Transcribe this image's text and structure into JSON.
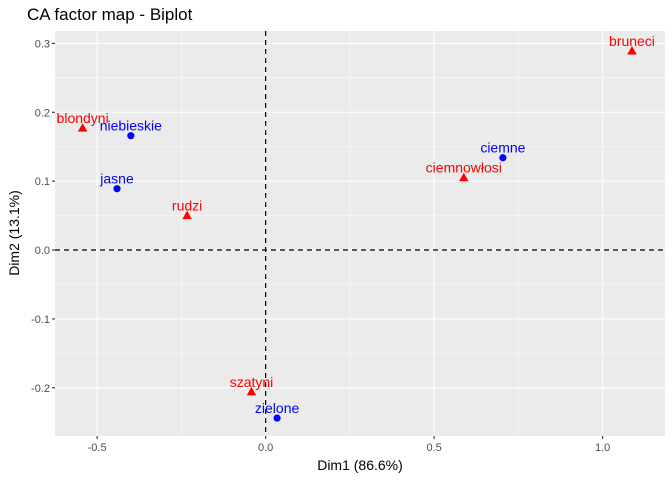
{
  "chart_data": {
    "type": "scatter",
    "title": "CA factor map - Biplot",
    "xlabel": "Dim1 (86.6%)",
    "ylabel": "Dim2 (13.1%)",
    "xlim": [
      -0.625,
      1.185
    ],
    "ylim": [
      -0.27,
      0.318
    ],
    "x_ticks": [
      -0.5,
      0.0,
      0.5,
      1.0
    ],
    "x_tick_labels": [
      "-0.5",
      "0.0",
      "0.5",
      "1.0"
    ],
    "y_ticks": [
      -0.2,
      -0.1,
      0.0,
      0.1,
      0.2,
      0.3
    ],
    "y_tick_labels": [
      "-0.2",
      "-0.1",
      "0.0",
      "0.1",
      "0.2",
      "0.3"
    ],
    "grid": true,
    "reference_lines": {
      "x": 0,
      "y": 0,
      "style": "dashed"
    },
    "series": [
      {
        "marker": "triangle",
        "color": "#ff0000",
        "points": [
          {
            "label": "blondyni",
            "x": -0.543,
            "y": 0.177
          },
          {
            "label": "rudzi",
            "x": -0.233,
            "y": 0.05
          },
          {
            "label": "szatyni",
            "x": -0.042,
            "y": -0.206
          },
          {
            "label": "ciemnowłosi",
            "x": 0.588,
            "y": 0.105
          },
          {
            "label": "bruneci",
            "x": 1.087,
            "y": 0.289
          }
        ]
      },
      {
        "marker": "circle",
        "color": "#0000ff",
        "points": [
          {
            "label": "niebieskie",
            "x": -0.4,
            "y": 0.166
          },
          {
            "label": "jasne",
            "x": -0.441,
            "y": 0.089
          },
          {
            "label": "ciemne",
            "x": 0.704,
            "y": 0.134
          },
          {
            "label": "zielone",
            "x": 0.034,
            "y": -0.244
          }
        ]
      }
    ]
  },
  "colors": {
    "panel_background": "#ebebeb",
    "grid_major": "#ffffff",
    "reference_line": "#000000"
  }
}
